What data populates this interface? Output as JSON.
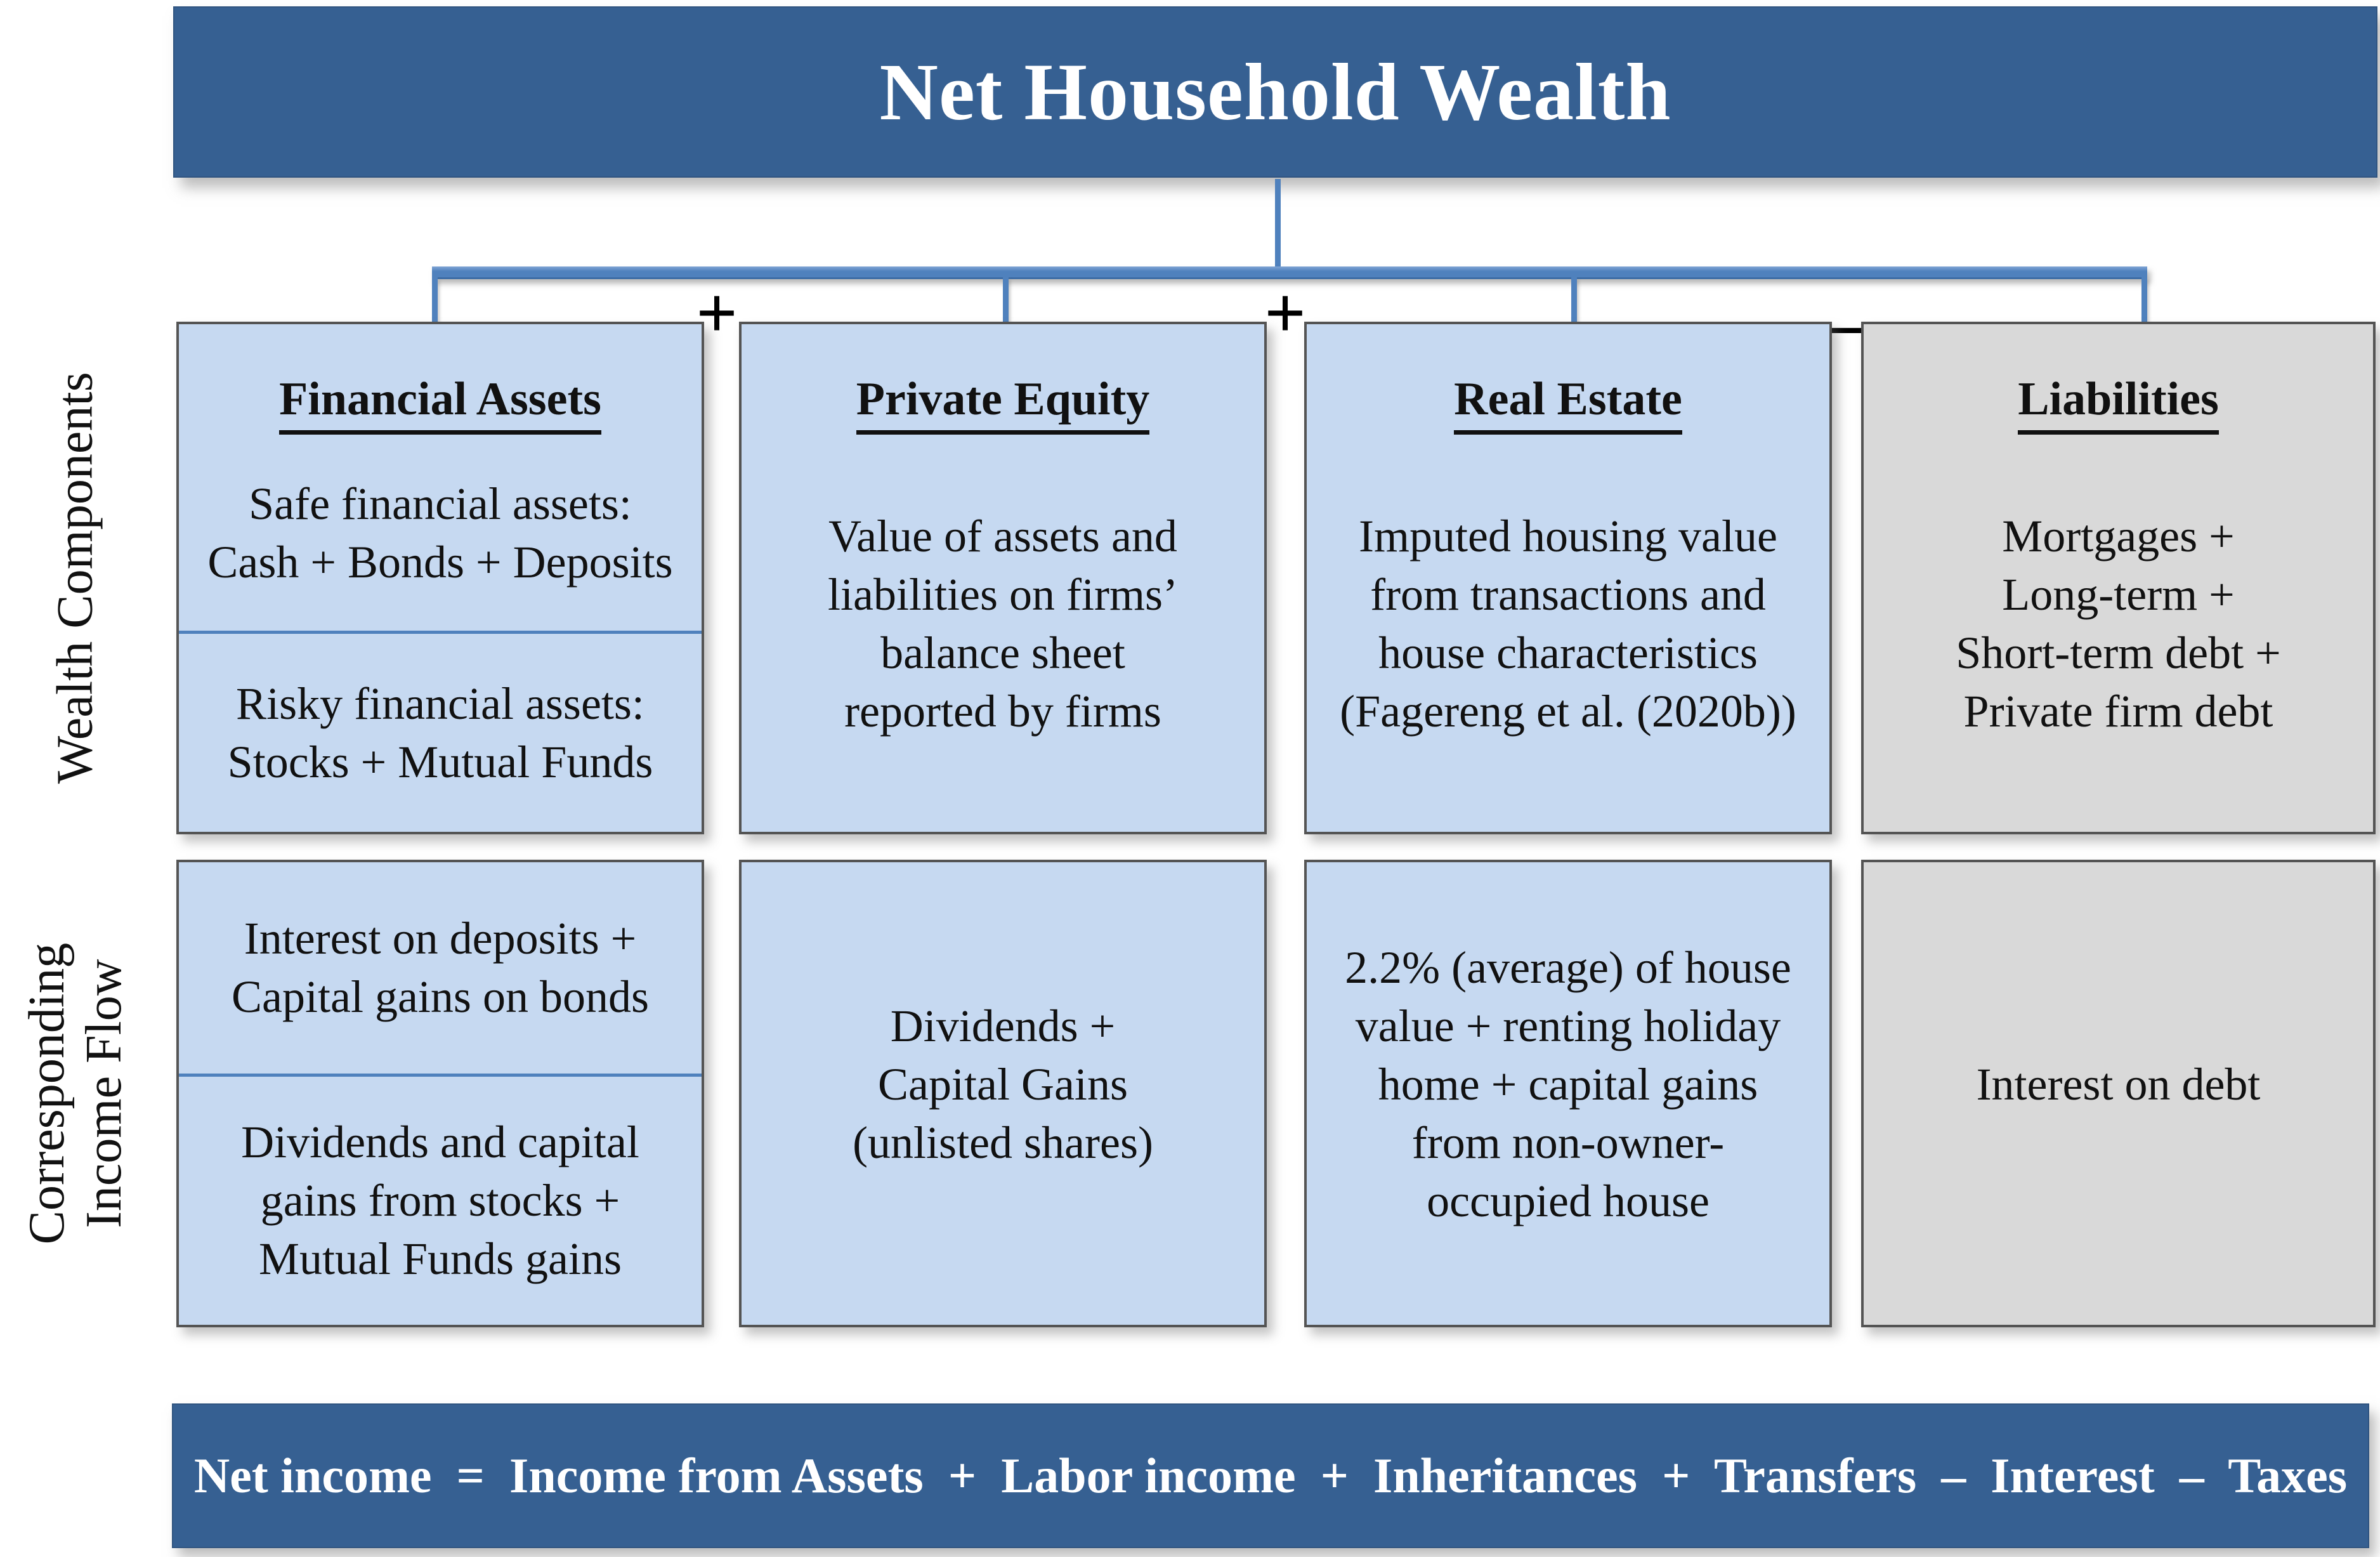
{
  "title": "Net Household Wealth",
  "side_labels": {
    "wealth": "Wealth Components",
    "income": [
      "Corresponding",
      "Income Flow"
    ]
  },
  "operators": {
    "financial_private": "+",
    "private_real": "+",
    "real_liabilities": "–"
  },
  "colors": {
    "header_bg": "#366092",
    "connector_blue": "#4f81bd",
    "box_blue": "#c6d9f1",
    "box_gray": "#d9d9d9",
    "box_border": "#545454",
    "text": "#111111",
    "header_text": "#ffffff"
  },
  "columns": [
    {
      "id": "financial-assets",
      "wealth": {
        "heading": "Financial Assets",
        "segments": [
          [
            "Safe financial assets:",
            "Cash + Bonds + Deposits"
          ],
          [
            "Risky financial assets:",
            "Stocks + Mutual Funds"
          ]
        ]
      },
      "income": {
        "segments": [
          [
            "Interest on deposits +",
            "Capital gains on bonds"
          ],
          [
            "Dividends and capital",
            "gains from stocks +",
            "Mutual Funds gains"
          ]
        ]
      }
    },
    {
      "id": "private-equity",
      "wealth": {
        "heading": "Private Equity",
        "segments": [
          [
            "Value of assets and",
            "liabilities on firms’",
            "balance sheet",
            "reported by firms"
          ]
        ]
      },
      "income": {
        "segments": [
          [
            "Dividends +",
            "Capital Gains",
            "(unlisted shares)"
          ]
        ]
      }
    },
    {
      "id": "real-estate",
      "wealth": {
        "heading": "Real Estate",
        "segments": [
          [
            "Imputed housing value",
            "from transactions and",
            "house characteristics",
            "(Fagereng et al. (2020b))"
          ]
        ]
      },
      "income": {
        "segments": [
          [
            "2.2% (average) of house",
            "value + renting holiday",
            "home + capital gains",
            "from non-owner-",
            "occupied house"
          ]
        ]
      }
    },
    {
      "id": "liabilities",
      "wealth": {
        "heading": "Liabilities",
        "segments": [
          [
            "Mortgages +",
            "Long-term +",
            "Short-term debt +",
            "Private firm debt"
          ]
        ]
      },
      "income": {
        "segments": [
          [
            "Interest on debt"
          ]
        ]
      }
    }
  ],
  "footer": "Net income  =  Income from Assets  +  Labor income  +  Inheritances  +  Transfers  –  Interest  –  Taxes"
}
